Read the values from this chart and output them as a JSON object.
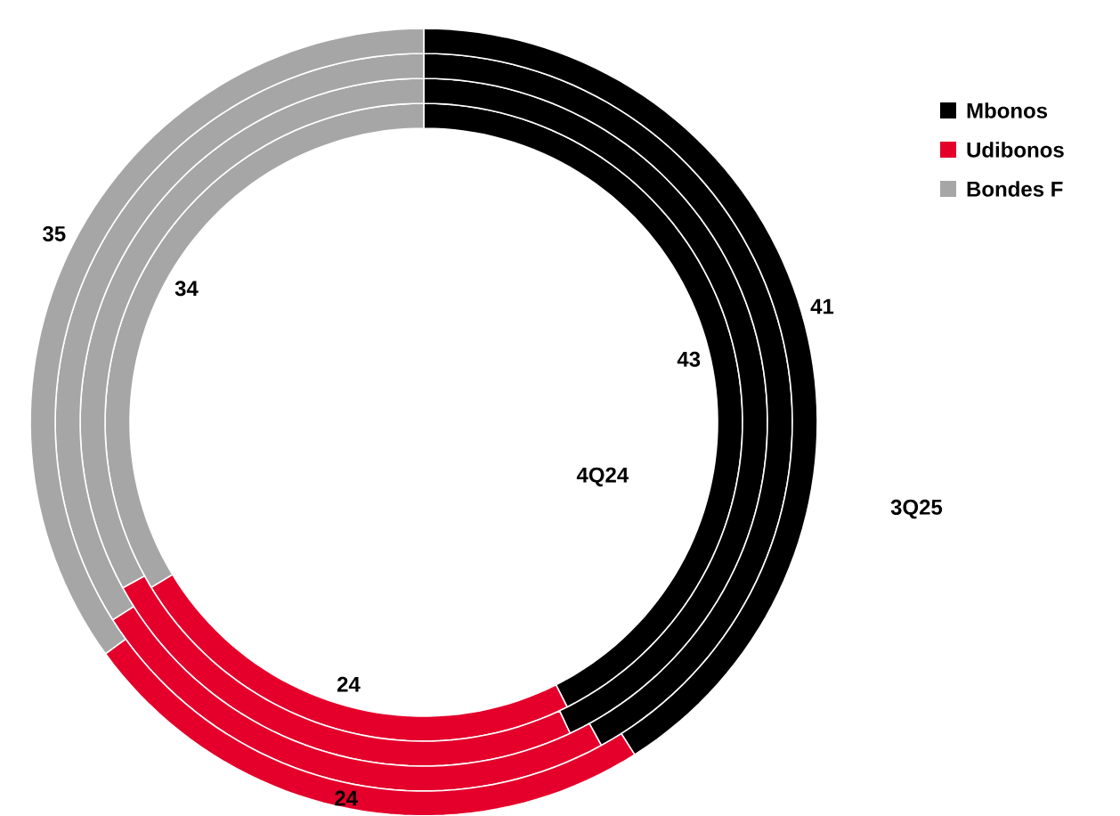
{
  "chart_data": {
    "type": "donut",
    "categories": [
      "Mbonos",
      "Udibonos",
      "Bondes F"
    ],
    "colors": [
      "#000000",
      "#e4002b",
      "#a6a6a6"
    ],
    "legend": "top right",
    "series": [
      {
        "name": "4Q24",
        "values": [
          43,
          24,
          34
        ],
        "value_labels": [
          "43",
          "24",
          "34"
        ]
      },
      {
        "values": [
          43,
          24,
          33
        ]
      },
      {
        "values": [
          42,
          24,
          34
        ]
      },
      {
        "name": "3Q25",
        "values": [
          41,
          24,
          35
        ],
        "value_labels": [
          "41",
          "24",
          "35"
        ]
      }
    ]
  }
}
